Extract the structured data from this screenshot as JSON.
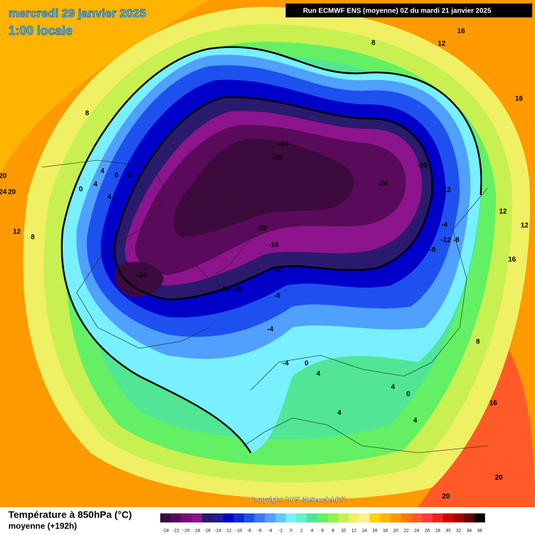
{
  "header": {
    "date": "mercredi 29 janvier 2025",
    "time": "1:00 locale",
    "run": "Run ECMWF ENS (moyenne) 0Z du mardi 21 janvier 2025"
  },
  "map": {
    "contour_labels": [
      "-24",
      "-28",
      "-24",
      "-20",
      "-12",
      "-20",
      "-16",
      "-12",
      "-8",
      "-24",
      "-20",
      "-20",
      "-4",
      "-12",
      "-8",
      "-8",
      "-4",
      "-4",
      "0",
      "4",
      "4",
      "4",
      "4",
      "0",
      "8",
      "16",
      "20",
      "20",
      "16",
      "12",
      "12",
      "16",
      "12",
      "16",
      "8",
      "8",
      "20",
      "24",
      "20",
      "12",
      "8",
      "4",
      "0",
      "0",
      "4",
      "0",
      "4"
    ],
    "copyright": "Copyright 2025 Meteociel.fr/2"
  },
  "legend": {
    "title": "Température à 850hPa (°C)",
    "subtitle": "moyenne  (+192h)",
    "labels": [
      -24,
      -22,
      -20,
      -18,
      -16,
      -14,
      -12,
      -10,
      -8,
      -6,
      -4,
      -2,
      0,
      2,
      4,
      6,
      8,
      10,
      12,
      14,
      16,
      18,
      20,
      22,
      24,
      26,
      28,
      30,
      32,
      34,
      36
    ],
    "colors": [
      "#3c0a3c",
      "#5a0a5a",
      "#780a78",
      "#8c148c",
      "#2a1a6e",
      "#1e1e96",
      "#0000c8",
      "#0a28dc",
      "#1e50f0",
      "#3c78ff",
      "#50a0ff",
      "#64c8ff",
      "#78f0ff",
      "#64f0c8",
      "#50e696",
      "#64f064",
      "#96f050",
      "#c8f050",
      "#f0f064",
      "#fff08c",
      "#ffd200",
      "#ffb400",
      "#ff9600",
      "#ff7800",
      "#ff5a28",
      "#ff3c3c",
      "#f01e1e",
      "#d20000",
      "#a00000",
      "#640000",
      "#000000"
    ]
  }
}
